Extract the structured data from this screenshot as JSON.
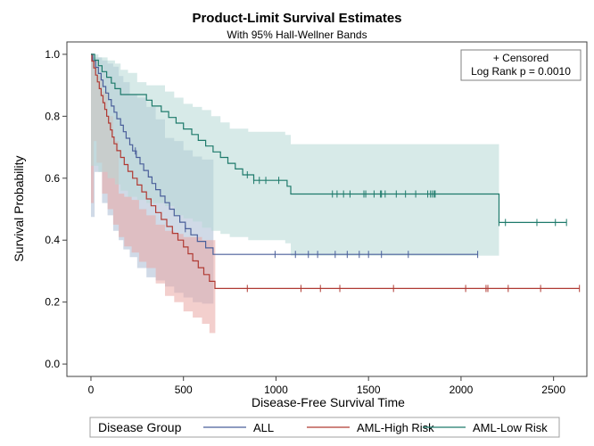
{
  "chart_data": {
    "type": "line",
    "title": "Product-Limit Survival Estimates",
    "subtitle": "With 95% Hall-Wellner Bands",
    "xlabel": "Disease-Free Survival Time",
    "ylabel": "Survival Probability",
    "xlim": [
      -130,
      2680
    ],
    "ylim": [
      -0.04,
      1.04
    ],
    "xticks": [
      0,
      500,
      1000,
      1500,
      2000,
      2500
    ],
    "yticks": [
      0.0,
      0.2,
      0.4,
      0.6,
      0.8,
      1.0
    ],
    "xtick_labels": [
      "0",
      "500",
      "1000",
      "1500",
      "2000",
      "2500"
    ],
    "ytick_labels": [
      "0.0",
      "0.2",
      "0.4",
      "0.6",
      "0.8",
      "1.0"
    ],
    "inset": {
      "censored_label": "+ Censored",
      "logrank_label": "Log Rank p = 0.0010",
      "position": "top-right"
    },
    "legend": {
      "title": "Disease Group",
      "position": "bottom"
    },
    "series": [
      {
        "name": "ALL",
        "color": "#4a5f9a",
        "band_color": "#a9bcd3",
        "band_x_end": 662,
        "steps": [
          [
            0,
            1.0
          ],
          [
            10,
            0.979
          ],
          [
            25,
            0.958
          ],
          [
            40,
            0.938
          ],
          [
            55,
            0.917
          ],
          [
            65,
            0.896
          ],
          [
            80,
            0.875
          ],
          [
            95,
            0.854
          ],
          [
            110,
            0.833
          ],
          [
            125,
            0.813
          ],
          [
            140,
            0.792
          ],
          [
            160,
            0.771
          ],
          [
            175,
            0.75
          ],
          [
            190,
            0.729
          ],
          [
            210,
            0.708
          ],
          [
            225,
            0.688
          ],
          [
            245,
            0.667
          ],
          [
            265,
            0.646
          ],
          [
            285,
            0.625
          ],
          [
            310,
            0.604
          ],
          [
            330,
            0.583
          ],
          [
            350,
            0.563
          ],
          [
            375,
            0.542
          ],
          [
            400,
            0.521
          ],
          [
            425,
            0.5
          ],
          [
            450,
            0.479
          ],
          [
            480,
            0.458
          ],
          [
            510,
            0.437
          ],
          [
            540,
            0.417
          ],
          [
            575,
            0.396
          ],
          [
            620,
            0.375
          ],
          [
            660,
            0.354
          ]
        ],
        "end_x": 2090,
        "censored": [
          240,
          510,
          995,
          1105,
          1175,
          1225,
          1320,
          1385,
          1450,
          1500,
          1570,
          1715,
          2090
        ],
        "band": [
          [
            0,
            1.0,
            0.475
          ],
          [
            5,
            0.99,
            0.475
          ],
          [
            20,
            0.99,
            0.62
          ],
          [
            60,
            0.98,
            0.52
          ],
          [
            90,
            0.97,
            0.48
          ],
          [
            120,
            0.96,
            0.43
          ],
          [
            150,
            0.93,
            0.4
          ],
          [
            175,
            0.91,
            0.37
          ],
          [
            210,
            0.87,
            0.345
          ],
          [
            250,
            0.86,
            0.31
          ],
          [
            300,
            0.83,
            0.28
          ],
          [
            350,
            0.79,
            0.27
          ],
          [
            400,
            0.73,
            0.25
          ],
          [
            450,
            0.72,
            0.23
          ],
          [
            500,
            0.69,
            0.215
          ],
          [
            550,
            0.67,
            0.2
          ],
          [
            600,
            0.66,
            0.195
          ],
          [
            662,
            0.66,
            0.195
          ]
        ]
      },
      {
        "name": "AML-High Risk",
        "color": "#b03a33",
        "band_color": "#eaa7a4",
        "band_x_end": 672,
        "steps": [
          [
            0,
            1.0
          ],
          [
            5,
            0.978
          ],
          [
            15,
            0.956
          ],
          [
            25,
            0.933
          ],
          [
            35,
            0.911
          ],
          [
            45,
            0.889
          ],
          [
            55,
            0.867
          ],
          [
            65,
            0.844
          ],
          [
            75,
            0.822
          ],
          [
            85,
            0.8
          ],
          [
            95,
            0.778
          ],
          [
            105,
            0.756
          ],
          [
            115,
            0.733
          ],
          [
            125,
            0.711
          ],
          [
            140,
            0.689
          ],
          [
            160,
            0.667
          ],
          [
            180,
            0.644
          ],
          [
            200,
            0.622
          ],
          [
            225,
            0.6
          ],
          [
            250,
            0.578
          ],
          [
            275,
            0.556
          ],
          [
            300,
            0.533
          ],
          [
            325,
            0.511
          ],
          [
            350,
            0.489
          ],
          [
            380,
            0.467
          ],
          [
            410,
            0.444
          ],
          [
            440,
            0.422
          ],
          [
            470,
            0.4
          ],
          [
            500,
            0.378
          ],
          [
            525,
            0.356
          ],
          [
            550,
            0.333
          ],
          [
            580,
            0.311
          ],
          [
            610,
            0.289
          ],
          [
            640,
            0.267
          ],
          [
            670,
            0.244
          ]
        ],
        "end_x": 2640,
        "censored": [
          845,
          1135,
          1240,
          1345,
          1635,
          2025,
          2135,
          2145,
          2255,
          2430,
          2640
        ],
        "band": [
          [
            0,
            1.0,
            0.52
          ],
          [
            5,
            0.98,
            0.52
          ],
          [
            15,
            0.98,
            0.72
          ],
          [
            30,
            0.93,
            0.65
          ],
          [
            60,
            0.88,
            0.55
          ],
          [
            90,
            0.8,
            0.5
          ],
          [
            120,
            0.72,
            0.45
          ],
          [
            150,
            0.55,
            0.41
          ],
          [
            180,
            0.54,
            0.38
          ],
          [
            220,
            0.53,
            0.36
          ],
          [
            260,
            0.5,
            0.33
          ],
          [
            300,
            0.48,
            0.31
          ],
          [
            350,
            0.45,
            0.26
          ],
          [
            400,
            0.43,
            0.22
          ],
          [
            450,
            0.42,
            0.2
          ],
          [
            500,
            0.41,
            0.17
          ],
          [
            550,
            0.41,
            0.15
          ],
          [
            600,
            0.4,
            0.13
          ],
          [
            640,
            0.4,
            0.1
          ],
          [
            672,
            0.4,
            0.1
          ]
        ]
      },
      {
        "name": "AML-Low Risk",
        "color": "#1e7a6b",
        "band_color": "#b7d8d6",
        "band_x_end": 2205,
        "steps": [
          [
            0,
            1.0
          ],
          [
            20,
            0.981
          ],
          [
            40,
            0.963
          ],
          [
            60,
            0.944
          ],
          [
            85,
            0.926
          ],
          [
            110,
            0.907
          ],
          [
            130,
            0.889
          ],
          [
            160,
            0.87
          ],
          [
            300,
            0.852
          ],
          [
            330,
            0.833
          ],
          [
            380,
            0.815
          ],
          [
            420,
            0.796
          ],
          [
            460,
            0.778
          ],
          [
            500,
            0.759
          ],
          [
            545,
            0.741
          ],
          [
            580,
            0.722
          ],
          [
            620,
            0.704
          ],
          [
            660,
            0.685
          ],
          [
            700,
            0.667
          ],
          [
            740,
            0.648
          ],
          [
            780,
            0.63
          ],
          [
            820,
            0.611
          ],
          [
            880,
            0.593
          ],
          [
            1060,
            0.574
          ],
          [
            1080,
            0.549
          ],
          [
            2205,
            0.457
          ]
        ],
        "end_x": 2570,
        "censored": [
          845,
          880,
          910,
          945,
          1015,
          1305,
          1330,
          1365,
          1400,
          1475,
          1485,
          1530,
          1565,
          1570,
          1590,
          1650,
          1700,
          1755,
          1820,
          1835,
          1845,
          1855,
          1860,
          2205,
          2240,
          2410,
          2510,
          2570
        ],
        "band": [
          [
            0,
            1.0,
            0.64
          ],
          [
            40,
            0.99,
            0.62
          ],
          [
            90,
            0.98,
            0.6
          ],
          [
            130,
            0.97,
            0.58
          ],
          [
            160,
            0.95,
            0.56
          ],
          [
            200,
            0.94,
            0.54
          ],
          [
            250,
            0.91,
            0.53
          ],
          [
            300,
            0.9,
            0.52
          ],
          [
            400,
            0.88,
            0.51
          ],
          [
            450,
            0.86,
            0.48
          ],
          [
            500,
            0.84,
            0.47
          ],
          [
            550,
            0.83,
            0.46
          ],
          [
            600,
            0.82,
            0.44
          ],
          [
            650,
            0.8,
            0.43
          ],
          [
            700,
            0.78,
            0.42
          ],
          [
            750,
            0.76,
            0.41
          ],
          [
            850,
            0.75,
            0.4
          ],
          [
            1050,
            0.74,
            0.39
          ],
          [
            1080,
            0.71,
            0.35
          ],
          [
            2205,
            0.71,
            0.35
          ]
        ]
      }
    ]
  }
}
